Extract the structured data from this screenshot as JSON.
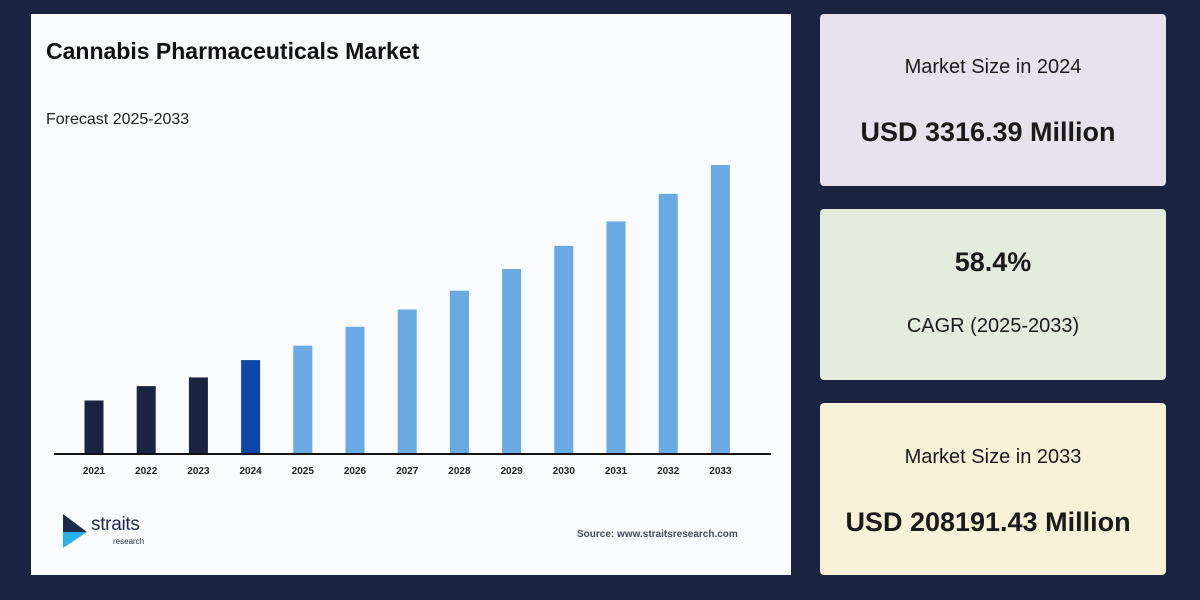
{
  "chart": {
    "title": "Cannabis Pharmaceuticals Market",
    "subtitle": "Forecast 2025-2033",
    "source": "Source: www.straitsresearch.com"
  },
  "logo": {
    "name": "straits",
    "sub": "research"
  },
  "cards": {
    "size_2024": {
      "label": "Market Size in 2024",
      "value": "USD 3316.39 Million"
    },
    "cagr": {
      "value": "58.4%",
      "label": "CAGR (2025-2033)"
    },
    "size_2033": {
      "label": "Market Size in 2033",
      "value": "USD 208191.43 Million"
    }
  },
  "colors": {
    "historical": "#1a2340",
    "base_year": "#0a47a8",
    "forecast": "#6aaae4",
    "axis": "#111111"
  },
  "chart_data": {
    "type": "bar",
    "categories": [
      "2021",
      "2022",
      "2023",
      "2024",
      "2025",
      "2026",
      "2027",
      "2028",
      "2029",
      "2030",
      "2031",
      "2032",
      "2033"
    ],
    "values": [
      18.5,
      23.5,
      26.5,
      32.5,
      37.5,
      44,
      50,
      56.5,
      64,
      72,
      80.5,
      90,
      100
    ],
    "value_unit": "relative bar height (unlabeled axis)",
    "bar_kind": [
      "historical",
      "historical",
      "historical",
      "base_year",
      "forecast",
      "forecast",
      "forecast",
      "forecast",
      "forecast",
      "forecast",
      "forecast",
      "forecast",
      "forecast"
    ],
    "ylim": [
      0,
      100
    ],
    "grid": false,
    "legend": "none"
  }
}
